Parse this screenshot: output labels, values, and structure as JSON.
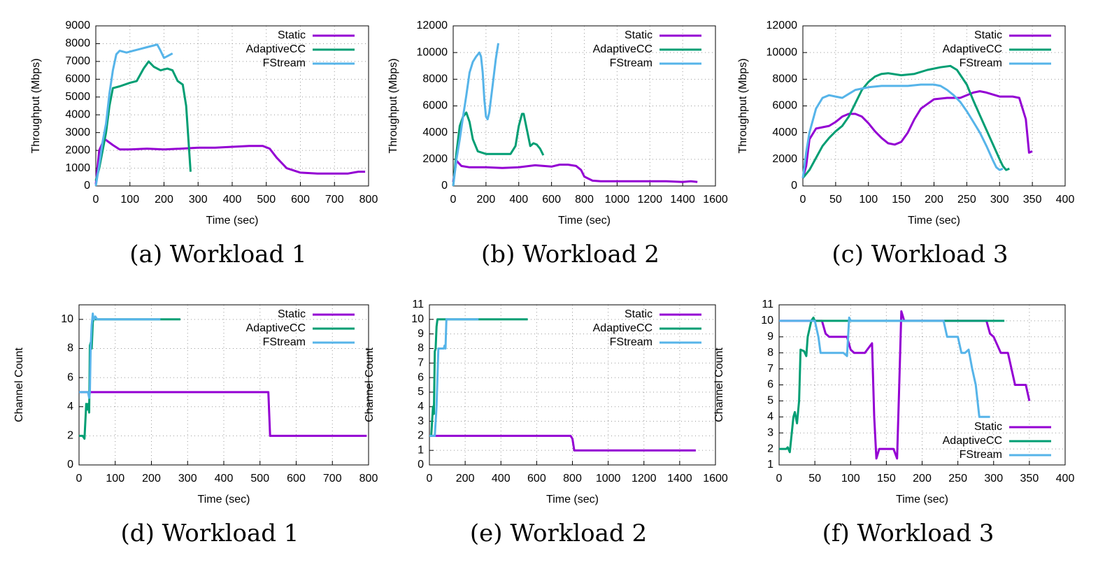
{
  "chart_data": [
    {
      "type": "line",
      "caption": "(a) Workload 1",
      "x_label": "Time (sec)",
      "y_label": "Throughput (Mbps)",
      "legend": "top-right",
      "grid": true,
      "xlim": [
        0,
        800
      ],
      "xticks": [
        0,
        100,
        200,
        300,
        400,
        500,
        600,
        700,
        800
      ],
      "ylim": [
        0,
        9000
      ],
      "yticks": [
        0,
        1000,
        2000,
        3000,
        4000,
        5000,
        6000,
        7000,
        8000,
        9000
      ],
      "series": [
        {
          "name": "Static",
          "color": "#9400d3",
          "x": [
            0,
            10,
            25,
            50,
            70,
            100,
            150,
            200,
            250,
            300,
            350,
            400,
            450,
            490,
            510,
            530,
            560,
            600,
            650,
            700,
            740,
            770,
            790
          ],
          "values": [
            100,
            2000,
            2650,
            2300,
            2050,
            2050,
            2100,
            2050,
            2100,
            2150,
            2150,
            2200,
            2250,
            2250,
            2100,
            1600,
            1000,
            750,
            700,
            700,
            700,
            800,
            800
          ]
        },
        {
          "name": "AdaptiveCC",
          "color": "#009e73",
          "x": [
            0,
            10,
            20,
            30,
            40,
            50,
            70,
            100,
            120,
            140,
            155,
            170,
            190,
            210,
            225,
            240,
            255,
            265,
            272,
            278
          ],
          "values": [
            300,
            1000,
            2000,
            3000,
            4500,
            5500,
            5600,
            5800,
            5900,
            6600,
            7000,
            6700,
            6500,
            6600,
            6500,
            5900,
            5700,
            4500,
            2500,
            800
          ]
        },
        {
          "name": "FStream",
          "color": "#56b4e9",
          "x": [
            0,
            10,
            20,
            30,
            40,
            50,
            60,
            70,
            90,
            110,
            130,
            150,
            170,
            180,
            190,
            200,
            210,
            220,
            225
          ],
          "values": [
            0,
            1200,
            2500,
            3500,
            5200,
            6500,
            7400,
            7600,
            7500,
            7600,
            7700,
            7800,
            7900,
            7950,
            7600,
            7200,
            7300,
            7400,
            7450
          ]
        }
      ]
    },
    {
      "type": "line",
      "caption": "(b) Workload 2",
      "x_label": "Time (sec)",
      "y_label": "Throughput (Mbps)",
      "legend": "top-right",
      "grid": true,
      "xlim": [
        0,
        1600
      ],
      "xticks": [
        0,
        200,
        400,
        600,
        800,
        1000,
        1200,
        1400,
        1600
      ],
      "ylim": [
        0,
        12000
      ],
      "yticks": [
        0,
        2000,
        4000,
        6000,
        8000,
        10000,
        12000
      ],
      "series": [
        {
          "name": "Static",
          "color": "#9400d3",
          "x": [
            0,
            20,
            50,
            100,
            200,
            300,
            400,
            500,
            600,
            650,
            700,
            750,
            780,
            800,
            850,
            900,
            1000,
            1100,
            1200,
            1300,
            1400,
            1450,
            1490
          ],
          "values": [
            300,
            1900,
            1500,
            1400,
            1400,
            1350,
            1400,
            1550,
            1450,
            1600,
            1600,
            1500,
            1200,
            700,
            400,
            350,
            350,
            350,
            350,
            350,
            300,
            350,
            300
          ]
        },
        {
          "name": "AdaptiveCC",
          "color": "#009e73",
          "x": [
            0,
            20,
            40,
            60,
            80,
            100,
            120,
            150,
            200,
            250,
            300,
            350,
            380,
            400,
            420,
            430,
            450,
            470,
            490,
            510,
            530,
            550
          ],
          "values": [
            0,
            2500,
            4500,
            5200,
            5500,
            4800,
            3500,
            2600,
            2400,
            2400,
            2400,
            2400,
            3000,
            4500,
            5400,
            5400,
            4200,
            3000,
            3200,
            3100,
            2800,
            2300
          ]
        },
        {
          "name": "FStream",
          "color": "#56b4e9",
          "x": [
            0,
            20,
            40,
            60,
            80,
            100,
            120,
            140,
            160,
            170,
            180,
            190,
            200,
            210,
            220,
            240,
            260,
            275
          ],
          "values": [
            0,
            2000,
            3500,
            5200,
            6800,
            8500,
            9300,
            9700,
            10000,
            9700,
            8500,
            6500,
            5200,
            5000,
            5500,
            7500,
            9500,
            10700
          ]
        }
      ]
    },
    {
      "type": "line",
      "caption": "(c) Workload 3",
      "x_label": "Time (sec)",
      "y_label": "Throughput (Mbps)",
      "legend": "top-right",
      "grid": true,
      "xlim": [
        0,
        400
      ],
      "xticks": [
        0,
        50,
        100,
        150,
        200,
        250,
        300,
        350,
        400
      ],
      "ylim": [
        0,
        12000
      ],
      "yticks": [
        0,
        2000,
        4000,
        6000,
        8000,
        10000,
        12000
      ],
      "series": [
        {
          "name": "Static",
          "color": "#9400d3",
          "x": [
            0,
            5,
            10,
            20,
            30,
            40,
            50,
            60,
            70,
            80,
            90,
            100,
            110,
            120,
            130,
            140,
            150,
            160,
            170,
            180,
            200,
            220,
            240,
            260,
            270,
            280,
            300,
            320,
            330,
            340,
            345,
            350
          ],
          "values": [
            600,
            1500,
            3500,
            4300,
            4400,
            4500,
            4800,
            5200,
            5400,
            5400,
            5200,
            4700,
            4100,
            3600,
            3200,
            3100,
            3300,
            4000,
            5000,
            5800,
            6500,
            6600,
            6600,
            7000,
            7100,
            7000,
            6700,
            6700,
            6600,
            5000,
            2500,
            2600
          ]
        },
        {
          "name": "AdaptiveCC",
          "color": "#009e73",
          "x": [
            0,
            10,
            20,
            30,
            40,
            50,
            60,
            70,
            80,
            90,
            100,
            110,
            120,
            130,
            150,
            170,
            190,
            210,
            225,
            235,
            250,
            260,
            270,
            280,
            290,
            300,
            305,
            310,
            315
          ],
          "values": [
            600,
            1200,
            2100,
            3000,
            3600,
            4100,
            4500,
            5200,
            6200,
            7200,
            7800,
            8200,
            8400,
            8450,
            8300,
            8400,
            8700,
            8900,
            9000,
            8700,
            7600,
            6400,
            5300,
            4200,
            3100,
            2000,
            1500,
            1200,
            1300
          ]
        },
        {
          "name": "FStream",
          "color": "#56b4e9",
          "x": [
            0,
            5,
            10,
            20,
            30,
            40,
            50,
            60,
            70,
            80,
            100,
            120,
            140,
            160,
            180,
            200,
            210,
            220,
            230,
            240,
            250,
            260,
            270,
            280,
            290,
            295,
            300,
            305
          ],
          "values": [
            600,
            2500,
            4000,
            5800,
            6600,
            6800,
            6700,
            6600,
            6900,
            7200,
            7400,
            7500,
            7500,
            7500,
            7600,
            7600,
            7500,
            7200,
            6800,
            6300,
            5600,
            4800,
            4000,
            3000,
            1900,
            1400,
            1200,
            1300
          ]
        }
      ]
    },
    {
      "type": "line",
      "caption": "(d) Workload 1",
      "x_label": "Time (sec)",
      "y_label": "Channel Count",
      "legend": "top-right",
      "grid": true,
      "xlim": [
        0,
        800
      ],
      "xticks": [
        0,
        100,
        200,
        300,
        400,
        500,
        600,
        700,
        800
      ],
      "ylim": [
        0,
        11
      ],
      "yticks": [
        0,
        2,
        4,
        6,
        8,
        10
      ],
      "series": [
        {
          "name": "Static",
          "color": "#9400d3",
          "x": [
            0,
            523,
            528,
            795
          ],
          "values": [
            5,
            5,
            2,
            2
          ]
        },
        {
          "name": "AdaptiveCC",
          "color": "#009e73",
          "x": [
            0,
            5,
            10,
            15,
            20,
            22,
            25,
            28,
            30,
            32,
            35,
            38,
            40,
            45,
            50,
            100,
            200,
            280
          ],
          "values": [
            2,
            2,
            2,
            1.8,
            4.2,
            3.8,
            4.2,
            3.6,
            8.2,
            8.4,
            8,
            9.8,
            10,
            10,
            10,
            10,
            10,
            10
          ]
        },
        {
          "name": "FStream",
          "color": "#56b4e9",
          "x": [
            0,
            10,
            20,
            25,
            28,
            30,
            32,
            35,
            38,
            40,
            42,
            45,
            50,
            100,
            200,
            225
          ],
          "values": [
            5,
            5,
            5,
            5,
            4.6,
            5,
            8,
            9.6,
            10.4,
            10,
            10,
            10.2,
            10,
            10,
            10,
            10
          ]
        }
      ]
    },
    {
      "type": "line",
      "caption": "(e) Workload 2",
      "x_label": "Time (sec)",
      "y_label": "Channel Count",
      "legend": "top-right",
      "grid": true,
      "xlim": [
        0,
        1600
      ],
      "xticks": [
        0,
        200,
        400,
        600,
        800,
        1000,
        1200,
        1400,
        1600
      ],
      "ylim": [
        0,
        11
      ],
      "yticks": [
        0,
        1,
        2,
        3,
        4,
        5,
        6,
        7,
        8,
        9,
        10,
        11
      ],
      "series": [
        {
          "name": "Static",
          "color": "#9400d3",
          "x": [
            0,
            790,
            800,
            810,
            1490
          ],
          "values": [
            2,
            2,
            1.8,
            1,
            1
          ]
        },
        {
          "name": "AdaptiveCC",
          "color": "#009e73",
          "x": [
            0,
            10,
            20,
            25,
            30,
            35,
            40,
            45,
            50,
            100,
            200,
            300,
            400,
            550
          ],
          "values": [
            2,
            2,
            4,
            3.5,
            7.8,
            8,
            9.5,
            10,
            10,
            10,
            10,
            10,
            10,
            10
          ]
        },
        {
          "name": "FStream",
          "color": "#56b4e9",
          "x": [
            0,
            10,
            20,
            30,
            40,
            50,
            60,
            70,
            80,
            85,
            90,
            95,
            100,
            150,
            200,
            275
          ],
          "values": [
            2,
            2,
            2,
            2,
            4,
            8,
            8,
            8,
            8,
            8.2,
            8,
            10,
            10,
            10,
            10,
            10
          ]
        }
      ]
    },
    {
      "type": "line",
      "caption": "(f) Workload 3",
      "x_label": "Time (sec)",
      "y_label": "Channel Count",
      "legend": "bottom-right",
      "grid": true,
      "xlim": [
        0,
        400
      ],
      "xticks": [
        0,
        50,
        100,
        150,
        200,
        250,
        300,
        350,
        400
      ],
      "ylim": [
        1,
        11
      ],
      "yticks": [
        1,
        2,
        3,
        4,
        5,
        6,
        7,
        8,
        9,
        10,
        11
      ],
      "series": [
        {
          "name": "Static",
          "color": "#9400d3",
          "x": [
            0,
            50,
            60,
            65,
            70,
            80,
            95,
            100,
            105,
            110,
            120,
            130,
            133,
            136,
            140,
            150,
            160,
            165,
            168,
            171,
            175,
            200,
            250,
            290,
            295,
            300,
            310,
            320,
            325,
            330,
            340,
            345,
            350
          ],
          "values": [
            10,
            10,
            10,
            9.2,
            9,
            9,
            9,
            8.2,
            8,
            8,
            8,
            8.6,
            4,
            1.4,
            2,
            2,
            2,
            1.4,
            6,
            10.6,
            10,
            10,
            10,
            10,
            9.2,
            9,
            8,
            8,
            7,
            6,
            6,
            6,
            5
          ]
        },
        {
          "name": "AdaptiveCC",
          "color": "#009e73",
          "x": [
            0,
            10,
            12,
            15,
            20,
            22,
            25,
            28,
            30,
            35,
            38,
            40,
            45,
            48,
            50,
            100,
            200,
            300,
            315
          ],
          "values": [
            2,
            2,
            2.1,
            1.8,
            4,
            4.3,
            3.6,
            5,
            8.2,
            8.1,
            7.8,
            9,
            10,
            10.2,
            10,
            10,
            10,
            10,
            10
          ]
        },
        {
          "name": "FStream",
          "color": "#56b4e9",
          "x": [
            0,
            45,
            50,
            55,
            58,
            60,
            70,
            80,
            90,
            95,
            98,
            100,
            105,
            150,
            200,
            230,
            235,
            240,
            245,
            250,
            255,
            260,
            265,
            270,
            275,
            280,
            285,
            290,
            295
          ],
          "values": [
            10,
            10,
            10,
            9,
            8,
            8,
            8,
            8,
            8,
            7.8,
            10.2,
            10,
            10,
            10,
            10,
            10,
            9,
            9,
            9,
            9,
            8,
            8,
            8.2,
            7,
            6,
            4,
            4,
            4,
            4
          ]
        }
      ]
    }
  ]
}
